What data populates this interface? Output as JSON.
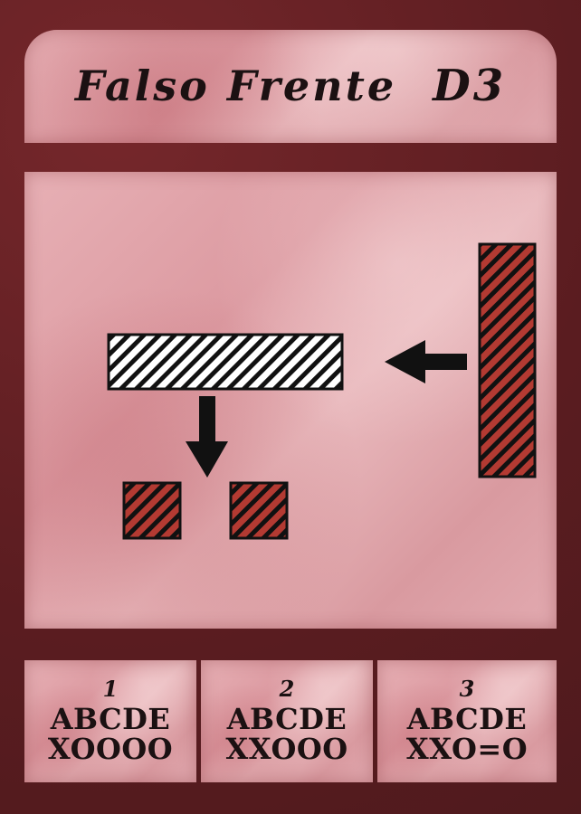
{
  "card": {
    "title": "Falso Frente",
    "code": "D3"
  },
  "colors": {
    "frame": "#5e1f22",
    "panel": "#e2aab0",
    "ink": "#1b1112",
    "red_hatch": "#b33a32",
    "white_hatch": "#ffffff"
  },
  "columns": [
    {
      "number": "1",
      "letters": "ABCDE",
      "result": "XOOOO"
    },
    {
      "number": "2",
      "letters": "ABCDE",
      "result": "XXOOO"
    },
    {
      "number": "3",
      "letters": "ABCDE",
      "result": "XXO=O"
    }
  ]
}
